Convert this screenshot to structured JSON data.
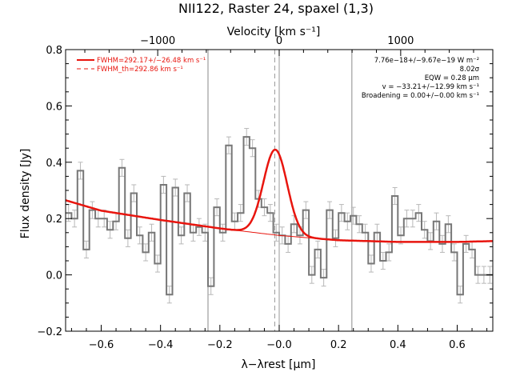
{
  "chart_data": {
    "type": "line",
    "title": "NII122, Raster 24, spaxel (1,3)",
    "top_axis_label": "Velocity [km s⁻¹]",
    "top_ticks": [
      -1000,
      0,
      1000
    ],
    "top_tick_labels": [
      "−1000",
      "0",
      "1000"
    ],
    "xlabel": "λ−λrest [μm]",
    "ylabel": "Flux density [Jy]",
    "xlim": [
      -0.72,
      0.72
    ],
    "ylim": [
      -0.2,
      0.8
    ],
    "x_ticks": [
      -0.6,
      -0.4,
      -0.2,
      0.0,
      0.2,
      0.4,
      0.6
    ],
    "x_tick_labels": [
      "−0.6",
      "−0.4",
      "−0.2",
      "−0.0",
      "0.2",
      "0.4",
      "0.6"
    ],
    "y_ticks": [
      -0.2,
      0.0,
      0.2,
      0.4,
      0.6,
      0.8
    ],
    "y_tick_labels": [
      "−0.2",
      "0.0",
      "0.2",
      "0.4",
      "0.6",
      "0.8"
    ],
    "vertical_lines": [
      {
        "x": -0.24,
        "style": "solid",
        "color": "#8a8a8a"
      },
      {
        "x": 0.245,
        "style": "solid",
        "color": "#8a8a8a"
      },
      {
        "x": -0.015,
        "style": "dashed",
        "color": "#9a9a9a"
      },
      {
        "x": 0.0,
        "style": "solid",
        "color": "#9a9a9a"
      }
    ],
    "spectrum": {
      "name": "",
      "style": "histogram",
      "color": "#777777",
      "bin_width": 0.02,
      "x": [
        -0.71,
        -0.69,
        -0.67,
        -0.65,
        -0.63,
        -0.61,
        -0.59,
        -0.57,
        -0.55,
        -0.53,
        -0.51,
        -0.49,
        -0.47,
        -0.45,
        -0.43,
        -0.41,
        -0.39,
        -0.37,
        -0.35,
        -0.33,
        -0.31,
        -0.29,
        -0.27,
        -0.25,
        -0.23,
        -0.21,
        -0.19,
        -0.17,
        -0.15,
        -0.13,
        -0.11,
        -0.09,
        -0.07,
        -0.05,
        -0.03,
        -0.01,
        0.01,
        0.03,
        0.05,
        0.07,
        0.09,
        0.11,
        0.13,
        0.15,
        0.17,
        0.19,
        0.21,
        0.23,
        0.25,
        0.27,
        0.29,
        0.31,
        0.33,
        0.35,
        0.37,
        0.39,
        0.41,
        0.43,
        0.45,
        0.47,
        0.49,
        0.51,
        0.53,
        0.55,
        0.57,
        0.59,
        0.61,
        0.63,
        0.65,
        0.67,
        0.69,
        0.71
      ],
      "y": [
        0.22,
        0.2,
        0.37,
        0.09,
        0.23,
        0.2,
        0.2,
        0.16,
        0.19,
        0.38,
        0.13,
        0.29,
        0.14,
        0.08,
        0.15,
        0.04,
        0.32,
        -0.07,
        0.31,
        0.14,
        0.29,
        0.15,
        0.17,
        0.15,
        -0.04,
        0.24,
        0.15,
        0.46,
        0.19,
        0.22,
        0.49,
        0.45,
        0.27,
        0.24,
        0.22,
        0.15,
        0.14,
        0.11,
        0.18,
        0.14,
        0.23,
        0.0,
        0.09,
        -0.01,
        0.23,
        0.13,
        0.22,
        0.19,
        0.21,
        0.18,
        0.15,
        0.04,
        0.15,
        0.05,
        0.08,
        0.28,
        0.14,
        0.2,
        0.2,
        0.22,
        0.16,
        0.12,
        0.19,
        0.11,
        0.18,
        0.08,
        -0.07,
        0.11,
        0.09,
        0.0,
        0.0,
        0.0
      ],
      "err": [
        0.03,
        0.03,
        0.03,
        0.03,
        0.03,
        0.03,
        0.03,
        0.03,
        0.03,
        0.03,
        0.03,
        0.03,
        0.03,
        0.03,
        0.03,
        0.03,
        0.03,
        0.03,
        0.03,
        0.03,
        0.03,
        0.03,
        0.03,
        0.03,
        0.03,
        0.03,
        0.03,
        0.03,
        0.03,
        0.03,
        0.03,
        0.03,
        0.03,
        0.03,
        0.03,
        0.03,
        0.03,
        0.03,
        0.03,
        0.03,
        0.03,
        0.03,
        0.03,
        0.03,
        0.03,
        0.03,
        0.03,
        0.03,
        0.03,
        0.03,
        0.03,
        0.03,
        0.03,
        0.03,
        0.03,
        0.03,
        0.03,
        0.03,
        0.03,
        0.03,
        0.03,
        0.03,
        0.03,
        0.03,
        0.03,
        0.03,
        0.03,
        0.03,
        0.03,
        0.03,
        0.03,
        0.03
      ]
    },
    "fit": {
      "color": "#e8150e",
      "baseline": {
        "x": [
          -0.72,
          -0.6,
          -0.4,
          -0.2,
          0.0,
          0.2,
          0.4,
          0.6,
          0.72
        ],
        "y": [
          0.265,
          0.228,
          0.195,
          0.165,
          0.14,
          0.123,
          0.117,
          0.117,
          0.12
        ]
      },
      "gaussian": {
        "center": -0.013,
        "amplitude": 0.303,
        "sigma": 0.04,
        "range": [
          -0.17,
          0.14
        ]
      }
    },
    "legend": {
      "placement": "top-left",
      "entries": [
        {
          "label": "FWHM=292.17+/−26.48 km s⁻¹",
          "style": "solid"
        },
        {
          "label": "FWHM_th=292.86 km s⁻¹",
          "style": "dashed"
        }
      ]
    },
    "annotations": [
      "7.76e−18+/−9.67e−19 W m⁻²",
      "8.02σ",
      "EQW = 0.28 μm",
      "v = −33.21+/−12.99 km s⁻¹",
      "Broadening = 0.00+/−0.00 km s⁻¹"
    ],
    "grid": false
  }
}
